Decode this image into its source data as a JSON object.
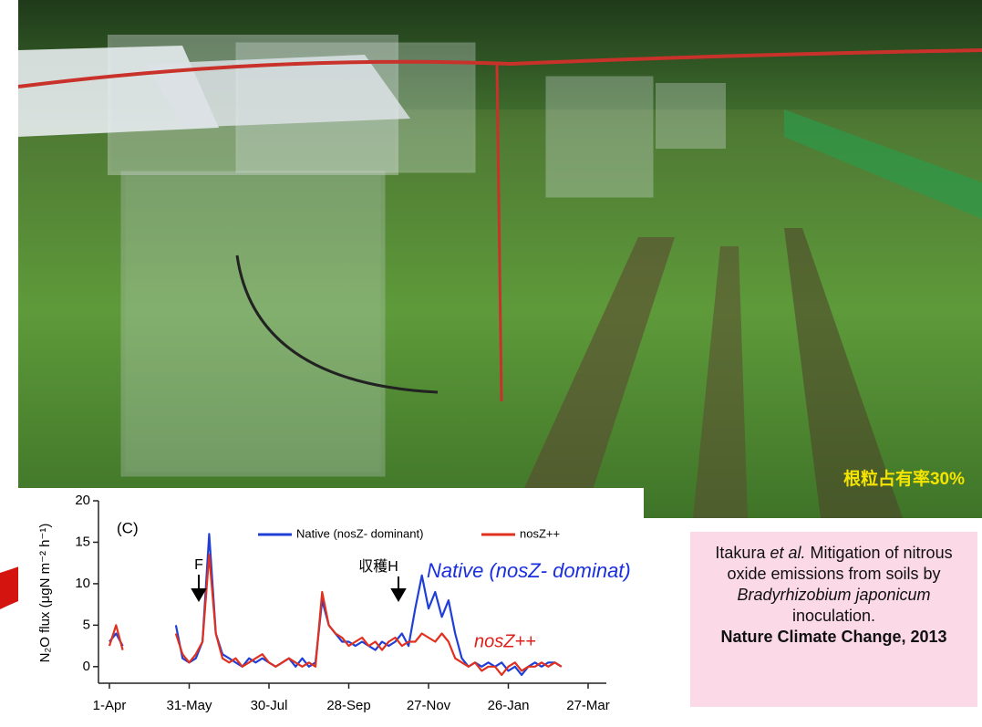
{
  "photo_caption": "根粒占有率30%",
  "citation": {
    "text_parts": [
      "Itakura ",
      "et al.",
      "Mitigation of nitrous oxide emissions from soils by ",
      "Bradyrhizobium japonicum",
      " inoculation."
    ],
    "journal": "Nature Climate Change, 2013"
  },
  "chart_data": {
    "type": "line",
    "panel_label": "(C)",
    "y_label": "N₂O flux (μgN m⁻² h⁻¹)",
    "categories": [
      "1-Apr",
      null,
      null,
      null,
      null,
      null,
      null,
      null,
      null,
      null,
      null,
      null,
      "31-May",
      null,
      null,
      null,
      null,
      null,
      null,
      null,
      null,
      null,
      null,
      null,
      "30-Jul",
      null,
      null,
      null,
      null,
      null,
      null,
      null,
      null,
      null,
      null,
      null,
      "28-Sep",
      null,
      null,
      null,
      null,
      null,
      null,
      null,
      null,
      null,
      null,
      null,
      "27-Nov",
      null,
      null,
      null,
      null,
      null,
      null,
      null,
      null,
      null,
      null,
      null,
      "26-Jan",
      null,
      null,
      null,
      null,
      null,
      null,
      null,
      null,
      null,
      null,
      null,
      "27-Mar"
    ],
    "series": [
      {
        "name": "Native (nosZ- dominant)",
        "color": "#1f3fd6",
        "values": [
          3,
          4,
          2.5,
          null,
          null,
          null,
          null,
          null,
          null,
          null,
          5,
          1,
          0.5,
          1,
          3,
          16,
          4,
          1.5,
          1,
          0.5,
          0,
          1,
          0.5,
          1,
          0.5,
          0,
          0.5,
          1,
          0,
          1,
          0,
          0.5,
          8,
          5,
          4,
          3,
          3,
          2.5,
          3,
          2.5,
          2,
          3,
          2.5,
          3,
          4,
          2.5,
          7,
          11,
          7,
          9,
          6,
          8,
          4,
          1,
          0,
          0.5,
          0,
          0.5,
          0,
          0.5,
          -0.5,
          0,
          -1,
          0,
          0.5,
          0,
          0.5,
          0.5,
          0,
          null,
          null,
          null,
          null
        ]
      },
      {
        "name": "nosZ++",
        "color": "#e0301e",
        "values": [
          2.5,
          5,
          2,
          null,
          null,
          null,
          null,
          null,
          null,
          null,
          4,
          1.5,
          0.5,
          1.5,
          3,
          13.5,
          4,
          1,
          0.5,
          1,
          0,
          0.5,
          1,
          1.5,
          0.5,
          0,
          0.5,
          1,
          0.5,
          0,
          0.5,
          0,
          9,
          5,
          4,
          3.5,
          2.5,
          3,
          3.5,
          2.5,
          3,
          2,
          3,
          3.5,
          2.5,
          3,
          3,
          4,
          3.5,
          3,
          4,
          3,
          1,
          0.5,
          0,
          0.5,
          -0.5,
          0,
          0,
          -1,
          0,
          0.5,
          -0.5,
          0,
          0,
          0.5,
          0,
          0.5,
          0,
          null,
          null,
          null,
          null
        ]
      }
    ],
    "ylim": [
      -2,
      20
    ],
    "yticks": [
      0,
      5,
      10,
      15,
      20
    ],
    "annotations": [
      "F",
      "収穫H",
      "Native (nosZ- dominat)",
      "nosZ++"
    ]
  }
}
